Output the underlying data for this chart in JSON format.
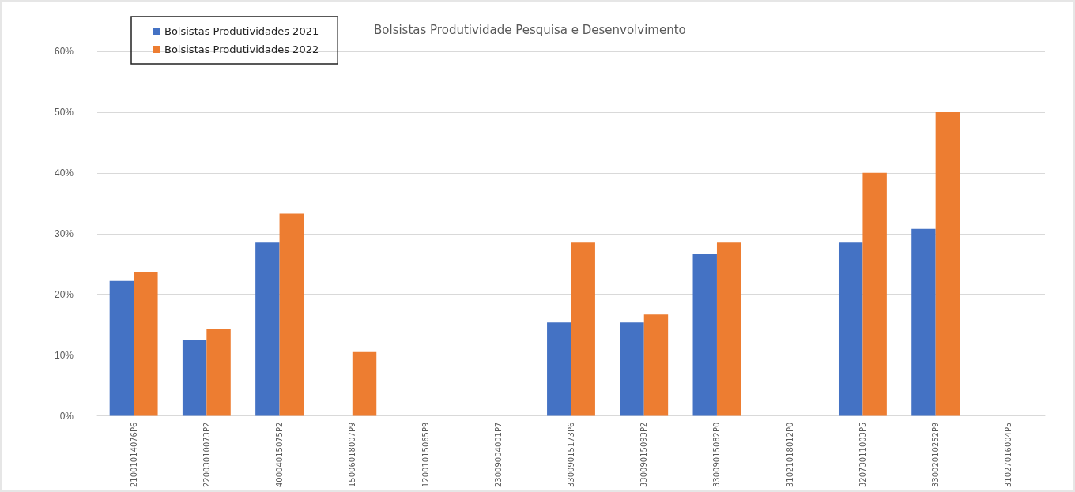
{
  "chart_data": {
    "type": "bar",
    "title": "Bolsistas Produtividade Pesquisa e Desenvolvimento",
    "categories": [
      "21001014076P6",
      "22003010073P2",
      "40004015075P2",
      "15006018007P9",
      "12001015065P9",
      "23009004001P7",
      "33009015173P6",
      "33009015093P2",
      "33009015082P0",
      "31021018012P0",
      "32073011003P5",
      "33002010252P9",
      "31027016004P5"
    ],
    "series": [
      {
        "name": "Bolsistas Produtividades 2021",
        "color": "#4472c4",
        "values": [
          22.2,
          12.5,
          28.5,
          0,
          0,
          0,
          15.4,
          15.4,
          26.7,
          0,
          28.5,
          30.8,
          0
        ]
      },
      {
        "name": "Bolsistas Produtividades 2022",
        "color": "#ed7d31",
        "values": [
          23.6,
          14.3,
          33.3,
          10.5,
          0,
          0,
          28.5,
          16.7,
          28.5,
          0,
          40,
          50,
          0
        ]
      }
    ],
    "ylim": [
      0,
      60
    ],
    "yticks": [
      {
        "value": 0,
        "label": "0%"
      },
      {
        "value": 10,
        "label": "10%"
      },
      {
        "value": 20,
        "label": "20%"
      },
      {
        "value": 30,
        "label": "30%"
      },
      {
        "value": 40,
        "label": "40%"
      },
      {
        "value": 50,
        "label": "50%"
      },
      {
        "value": 60,
        "label": "60%"
      }
    ],
    "grid": "y",
    "legend": "top left"
  }
}
